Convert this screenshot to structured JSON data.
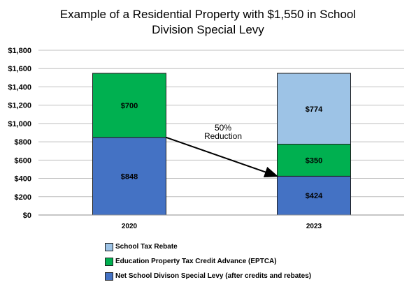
{
  "chart_data": {
    "type": "bar",
    "stacked": true,
    "title_lines": [
      "Example of a Residential Property with $1,550 in School",
      "Division Special Levy"
    ],
    "categories": [
      "2020",
      "2023"
    ],
    "series": [
      {
        "name": "Net School Divison Special Levy (after credits and rebates)",
        "color": "#4472c4",
        "values": [
          848,
          424
        ],
        "labels": [
          "$848",
          "$424"
        ]
      },
      {
        "name": "Education Property Tax Credit Advance (EPTCA)",
        "color": "#00b050",
        "values": [
          700,
          350
        ],
        "labels": [
          "$700",
          "$350"
        ]
      },
      {
        "name": "School Tax Rebate",
        "color": "#9dc3e6",
        "values": [
          0,
          774
        ],
        "labels": [
          "",
          "$774"
        ]
      }
    ],
    "ylim": [
      0,
      1800
    ],
    "y_ticks": [
      0,
      200,
      400,
      600,
      800,
      1000,
      1200,
      1400,
      1600,
      1800
    ],
    "y_tick_labels": [
      "$0",
      "$200",
      "$400",
      "$600",
      "$800",
      "$1,000",
      "$1,200",
      "$1,400",
      "$1,600",
      "$1,800"
    ],
    "grid": true,
    "annotation": {
      "lines": [
        "50%",
        "Reduction"
      ],
      "from": {
        "category": "2020",
        "value": 848
      },
      "to": {
        "category": "2023",
        "value": 424
      }
    },
    "legend_placement": "bottom-left"
  }
}
